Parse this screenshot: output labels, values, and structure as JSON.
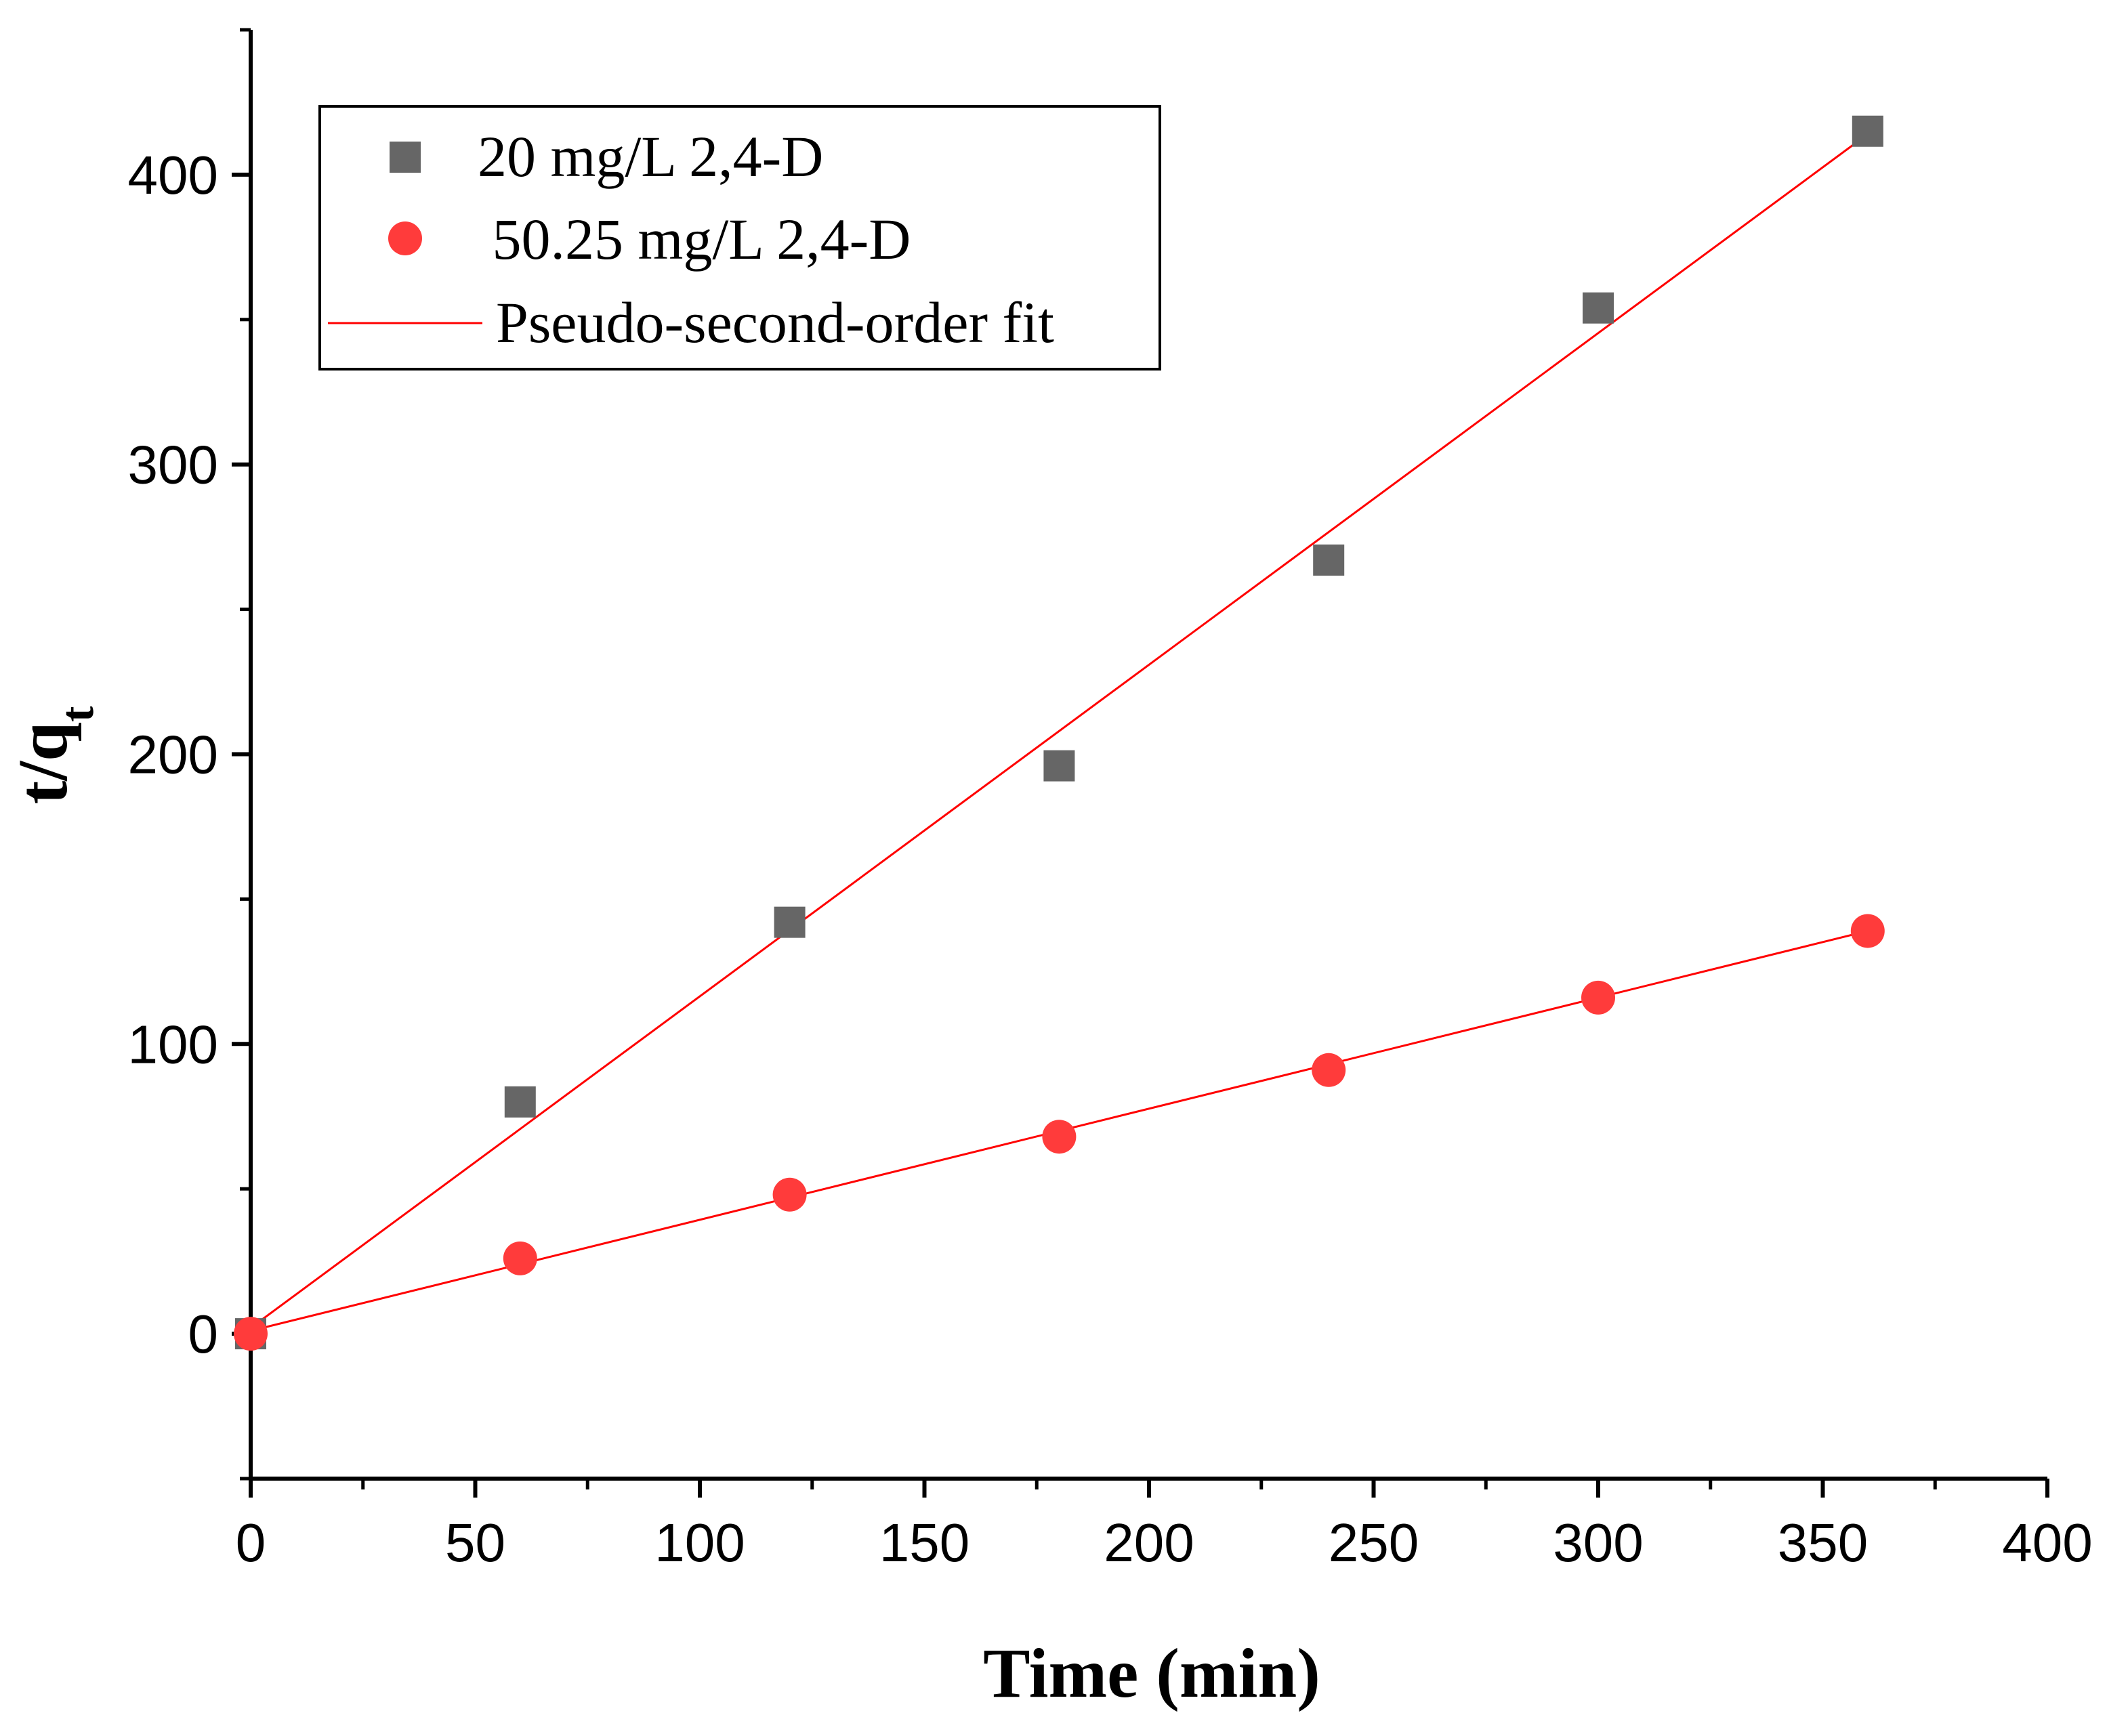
{
  "chart_data": {
    "type": "scatter",
    "title": "",
    "xlabel": "Time (min)",
    "ylabel_main": "t/q",
    "ylabel_sub": "t",
    "xlim": [
      0,
      400
    ],
    "ylim": [
      -50,
      450
    ],
    "x_ticks": [
      0,
      50,
      100,
      150,
      200,
      250,
      300,
      350,
      400
    ],
    "y_ticks": [
      0,
      100,
      200,
      300,
      400
    ],
    "x_tick_labels": [
      "0",
      "50",
      "100",
      "150",
      "200",
      "250",
      "300",
      "350",
      "400"
    ],
    "y_tick_labels": [
      "0",
      "100",
      "200",
      "300",
      "400"
    ],
    "grid": false,
    "legend_position": "top-left",
    "series": [
      {
        "name": "20 mg/L 2,4-D",
        "marker": "square",
        "color": "#666666",
        "x": [
          0,
          60,
          120,
          180,
          240,
          300,
          360
        ],
        "y": [
          0,
          80,
          142,
          196,
          267,
          354,
          415
        ]
      },
      {
        "name": " 50.25 mg/L 2,4-D",
        "marker": "circle",
        "color": "#ff3b3b",
        "x": [
          0,
          60,
          120,
          180,
          240,
          300,
          360
        ],
        "y": [
          0,
          26,
          48,
          68,
          91,
          116,
          139
        ]
      }
    ],
    "fits": [
      {
        "name": "Pseudo-second-order fit",
        "color": "#ff0000",
        "x": [
          0,
          360
        ],
        "y": [
          2,
          414
        ]
      },
      {
        "name": "Pseudo-second-order fit",
        "color": "#ff0000",
        "x": [
          0,
          360
        ],
        "y": [
          1,
          139
        ]
      }
    ],
    "legend": [
      {
        "label": "20 mg/L 2,4-D",
        "symbol": "square",
        "color": "#666666"
      },
      {
        "label": " 50.25 mg/L 2,4-D",
        "symbol": "circle",
        "color": "#ff3b3b"
      },
      {
        "label": "Pseudo-second-order fit",
        "symbol": "line",
        "color": "#ff0000"
      }
    ]
  }
}
